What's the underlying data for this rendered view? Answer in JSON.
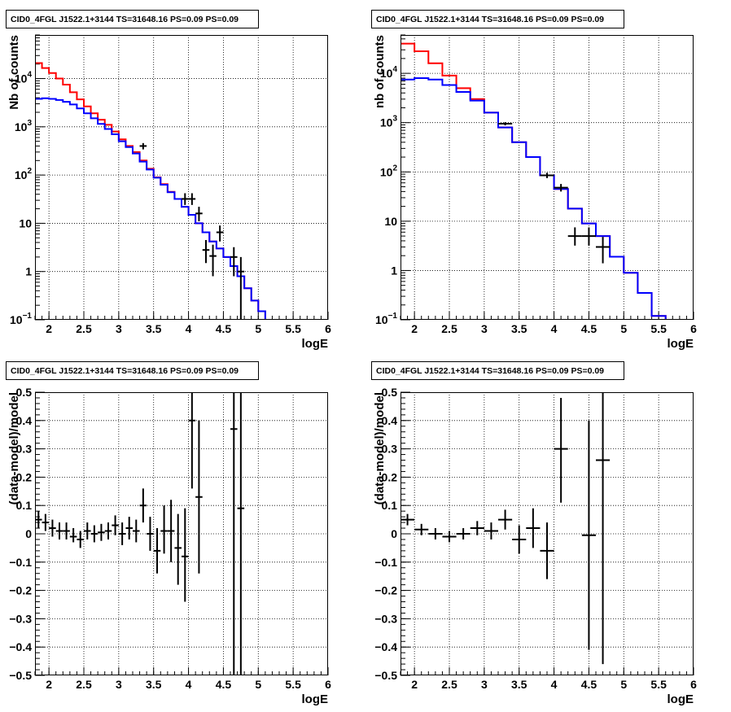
{
  "colors": {
    "data": "#000000",
    "model_total": "#ff0000",
    "model_component": "#0000ff",
    "grid": "#000000"
  },
  "chart_data": [
    {
      "type": "line",
      "title": "CID0_4FGL J1522.1+3144 TS=31648.16 PS=0.09 PS=0.09",
      "xlabel": "logE",
      "ylabel": "Nb of counts",
      "xlim": [
        1.8,
        6.0
      ],
      "ylim": [
        0.1,
        80000
      ],
      "yscale": "log",
      "grid": true,
      "x_ticks": [
        "2",
        "2.5",
        "3",
        "3.5",
        "4",
        "4.5",
        "5",
        "5.5",
        "6"
      ],
      "y_ticks": [
        "10^-1",
        "1",
        "10",
        "10^2",
        "10^3",
        "10^4"
      ],
      "bin_edges": [
        1.8,
        1.9,
        2.0,
        2.1,
        2.2,
        2.3,
        2.4,
        2.5,
        2.6,
        2.7,
        2.8,
        2.9,
        3.0,
        3.1,
        3.2,
        3.3,
        3.4,
        3.5,
        3.6,
        3.7,
        3.8,
        3.9,
        4.0,
        4.1,
        4.2,
        4.3,
        4.4,
        4.5,
        4.6,
        4.7,
        4.8,
        4.9,
        5.0,
        5.1,
        5.2,
        5.3,
        5.4,
        5.5,
        5.6,
        5.7,
        5.8,
        5.9,
        6.0
      ],
      "series": [
        {
          "kind": "step",
          "color": "#ff0000",
          "values": [
            21000,
            16500,
            13000,
            10000,
            7500,
            5200,
            3700,
            2650,
            1900,
            1400,
            1100,
            800,
            550,
            400,
            300,
            200,
            135,
            90,
            65,
            45,
            32,
            22,
            15,
            10,
            6.5,
            4.2,
            3.0,
            2.0,
            1.3,
            0.8,
            0.45,
            0.25,
            0.15,
            0.1,
            0.1,
            0.1,
            0.1,
            0.1,
            0.1,
            0.1,
            0.1,
            0.1
          ]
        },
        {
          "kind": "step",
          "color": "#0000ff",
          "values": [
            3800,
            3900,
            3800,
            3600,
            3300,
            2900,
            2400,
            1900,
            1500,
            1150,
            900,
            700,
            500,
            380,
            280,
            190,
            130,
            88,
            63,
            44,
            32,
            22,
            15,
            10,
            6.5,
            4.2,
            3.0,
            2.0,
            1.3,
            0.8,
            0.45,
            0.25,
            0.15,
            0.1,
            0.1,
            0.1,
            0.1,
            0.1,
            0.1,
            0.1,
            0.1,
            0.1
          ]
        },
        {
          "kind": "points",
          "color": "#000000",
          "points": [
            {
              "x": 3.35,
              "y": 400,
              "lo": 340,
              "hi": 460
            },
            {
              "x": 3.95,
              "y": 32,
              "lo": 24,
              "hi": 42
            },
            {
              "x": 4.05,
              "y": 32,
              "lo": 24,
              "hi": 42
            },
            {
              "x": 4.15,
              "y": 16,
              "lo": 11,
              "hi": 22
            },
            {
              "x": 4.25,
              "y": 2.8,
              "lo": 1.5,
              "hi": 4.5
            },
            {
              "x": 4.35,
              "y": 2.1,
              "lo": 0.8,
              "hi": 3.6
            },
            {
              "x": 4.45,
              "y": 6.5,
              "lo": 4.2,
              "hi": 9.0
            },
            {
              "x": 4.65,
              "y": 2.0,
              "lo": 0.8,
              "hi": 3.2
            },
            {
              "x": 4.75,
              "y": 1.0,
              "lo": 0.1,
              "hi": 2.0
            }
          ]
        }
      ]
    },
    {
      "type": "line",
      "title": "CID0_4FGL J1522.1+3144 TS=31648.16 PS=0.09 PS=0.09",
      "xlabel": "logE",
      "ylabel": "nb of counts",
      "xlim": [
        1.8,
        6.0
      ],
      "ylim": [
        0.1,
        60000
      ],
      "yscale": "log",
      "grid": true,
      "x_ticks": [
        "2",
        "2.5",
        "3",
        "3.5",
        "4",
        "4.5",
        "5",
        "5.5",
        "6"
      ],
      "y_ticks": [
        "10^-1",
        "1",
        "10",
        "10^2",
        "10^3",
        "10^4"
      ],
      "bin_edges": [
        1.8,
        2.0,
        2.2,
        2.4,
        2.6,
        2.8,
        3.0,
        3.2,
        3.4,
        3.6,
        3.8,
        4.0,
        4.2,
        4.4,
        4.6,
        4.8,
        5.0,
        5.2,
        5.4,
        5.6,
        5.8,
        6.0
      ],
      "series": [
        {
          "kind": "step",
          "color": "#ff0000",
          "values": [
            40000,
            28000,
            16000,
            9000,
            5000,
            3000,
            1600,
            800,
            400,
            200,
            85,
            45,
            18,
            9,
            5,
            1.9,
            0.9,
            0.35,
            0.12,
            0.1,
            0.1
          ]
        },
        {
          "kind": "step",
          "color": "#0000ff",
          "values": [
            7500,
            8000,
            7500,
            5800,
            4200,
            2800,
            1600,
            800,
            400,
            200,
            85,
            45,
            18,
            9,
            5,
            1.9,
            0.9,
            0.35,
            0.12,
            0.1,
            0.1
          ]
        },
        {
          "kind": "points",
          "color": "#000000",
          "points": [
            {
              "x": 3.3,
              "y": 950,
              "lo": 880,
              "hi": 1020
            },
            {
              "x": 3.9,
              "y": 85,
              "lo": 75,
              "hi": 96
            },
            {
              "x": 4.1,
              "y": 48,
              "lo": 40,
              "hi": 57
            },
            {
              "x": 4.3,
              "y": 5,
              "lo": 3.2,
              "hi": 7.5
            },
            {
              "x": 4.5,
              "y": 5,
              "lo": 3.2,
              "hi": 7.5
            },
            {
              "x": 4.7,
              "y": 3,
              "lo": 1.4,
              "hi": 4.8
            }
          ]
        }
      ]
    },
    {
      "type": "scatter",
      "title": "CID0_4FGL J1522.1+3144 TS=31648.16 PS=0.09 PS=0.09",
      "xlabel": "logE",
      "ylabel": "(data-model)/model",
      "xlim": [
        1.8,
        6.0
      ],
      "ylim": [
        -0.5,
        0.5
      ],
      "grid": true,
      "x_ticks": [
        "2",
        "2.5",
        "3",
        "3.5",
        "4",
        "4.5",
        "5",
        "5.5",
        "6"
      ],
      "y_ticks": [
        "-0.5",
        "-0.4",
        "-0.3",
        "-0.2",
        "-0.1",
        "0",
        "0.1",
        "0.2",
        "0.3",
        "0.4",
        "0.5"
      ],
      "xerr": 0.05,
      "points": [
        {
          "x": 1.85,
          "y": 0.05,
          "lo": 0.02,
          "hi": 0.08
        },
        {
          "x": 1.95,
          "y": 0.04,
          "lo": 0.01,
          "hi": 0.07
        },
        {
          "x": 2.05,
          "y": 0.02,
          "lo": -0.01,
          "hi": 0.05
        },
        {
          "x": 2.15,
          "y": 0.01,
          "lo": -0.02,
          "hi": 0.04
        },
        {
          "x": 2.25,
          "y": 0.01,
          "lo": -0.02,
          "hi": 0.04
        },
        {
          "x": 2.35,
          "y": -0.01,
          "lo": -0.03,
          "hi": 0.02
        },
        {
          "x": 2.45,
          "y": -0.02,
          "lo": -0.05,
          "hi": 0.01
        },
        {
          "x": 2.55,
          "y": 0.01,
          "lo": -0.02,
          "hi": 0.04
        },
        {
          "x": 2.65,
          "y": 0.0,
          "lo": -0.03,
          "hi": 0.03
        },
        {
          "x": 2.75,
          "y": 0.005,
          "lo": -0.025,
          "hi": 0.035
        },
        {
          "x": 2.85,
          "y": 0.01,
          "lo": -0.02,
          "hi": 0.04
        },
        {
          "x": 2.95,
          "y": 0.03,
          "lo": -0.005,
          "hi": 0.065
        },
        {
          "x": 3.05,
          "y": 0.0,
          "lo": -0.04,
          "hi": 0.04
        },
        {
          "x": 3.15,
          "y": 0.02,
          "lo": -0.02,
          "hi": 0.06
        },
        {
          "x": 3.25,
          "y": 0.01,
          "lo": -0.03,
          "hi": 0.05
        },
        {
          "x": 3.35,
          "y": 0.1,
          "lo": 0.04,
          "hi": 0.16
        },
        {
          "x": 3.45,
          "y": 0.0,
          "lo": -0.06,
          "hi": 0.06
        },
        {
          "x": 3.55,
          "y": -0.06,
          "lo": -0.14,
          "hi": 0.02
        },
        {
          "x": 3.65,
          "y": 0.01,
          "lo": -0.07,
          "hi": 0.1
        },
        {
          "x": 3.75,
          "y": 0.01,
          "lo": -0.1,
          "hi": 0.12
        },
        {
          "x": 3.85,
          "y": -0.05,
          "lo": -0.18,
          "hi": 0.07
        },
        {
          "x": 3.95,
          "y": -0.08,
          "lo": -0.24,
          "hi": 0.09
        },
        {
          "x": 4.05,
          "y": 0.4,
          "lo": 0.16,
          "hi": 0.5
        },
        {
          "x": 4.15,
          "y": 0.13,
          "lo": -0.14,
          "hi": 0.4
        },
        {
          "x": 4.65,
          "y": 0.37,
          "lo": -0.5,
          "hi": 0.5
        },
        {
          "x": 4.75,
          "y": 0.09,
          "lo": -0.5,
          "hi": 0.5
        }
      ]
    },
    {
      "type": "scatter",
      "title": "CID0_4FGL J1522.1+3144 TS=31648.16 PS=0.09 PS=0.09",
      "xlabel": "logE",
      "ylabel": "(data-model)/model",
      "xlim": [
        1.8,
        6.0
      ],
      "ylim": [
        -0.5,
        0.5
      ],
      "grid": true,
      "x_ticks": [
        "2",
        "2.5",
        "3",
        "3.5",
        "4",
        "4.5",
        "5",
        "5.5",
        "6"
      ],
      "y_ticks": [
        "-0.5",
        "-0.4",
        "-0.3",
        "-0.2",
        "-0.1",
        "0",
        "0.1",
        "0.2",
        "0.3",
        "0.4",
        "0.5"
      ],
      "xerr": 0.1,
      "points": [
        {
          "x": 1.9,
          "y": 0.05,
          "lo": 0.03,
          "hi": 0.07
        },
        {
          "x": 2.1,
          "y": 0.015,
          "lo": -0.005,
          "hi": 0.035
        },
        {
          "x": 2.3,
          "y": 0.0,
          "lo": -0.02,
          "hi": 0.02
        },
        {
          "x": 2.5,
          "y": -0.01,
          "lo": -0.03,
          "hi": 0.01
        },
        {
          "x": 2.7,
          "y": 0.0,
          "lo": -0.02,
          "hi": 0.02
        },
        {
          "x": 2.9,
          "y": 0.02,
          "lo": -0.005,
          "hi": 0.045
        },
        {
          "x": 3.1,
          "y": 0.01,
          "lo": -0.02,
          "hi": 0.04
        },
        {
          "x": 3.3,
          "y": 0.05,
          "lo": 0.015,
          "hi": 0.085
        },
        {
          "x": 3.5,
          "y": -0.02,
          "lo": -0.07,
          "hi": 0.03
        },
        {
          "x": 3.7,
          "y": 0.02,
          "lo": -0.05,
          "hi": 0.09
        },
        {
          "x": 3.9,
          "y": -0.06,
          "lo": -0.16,
          "hi": 0.04
        },
        {
          "x": 4.1,
          "y": 0.3,
          "lo": 0.11,
          "hi": 0.48
        },
        {
          "x": 4.5,
          "y": -0.005,
          "lo": -0.41,
          "hi": 0.4
        },
        {
          "x": 4.7,
          "y": 0.26,
          "lo": -0.46,
          "hi": 0.5
        }
      ]
    }
  ]
}
